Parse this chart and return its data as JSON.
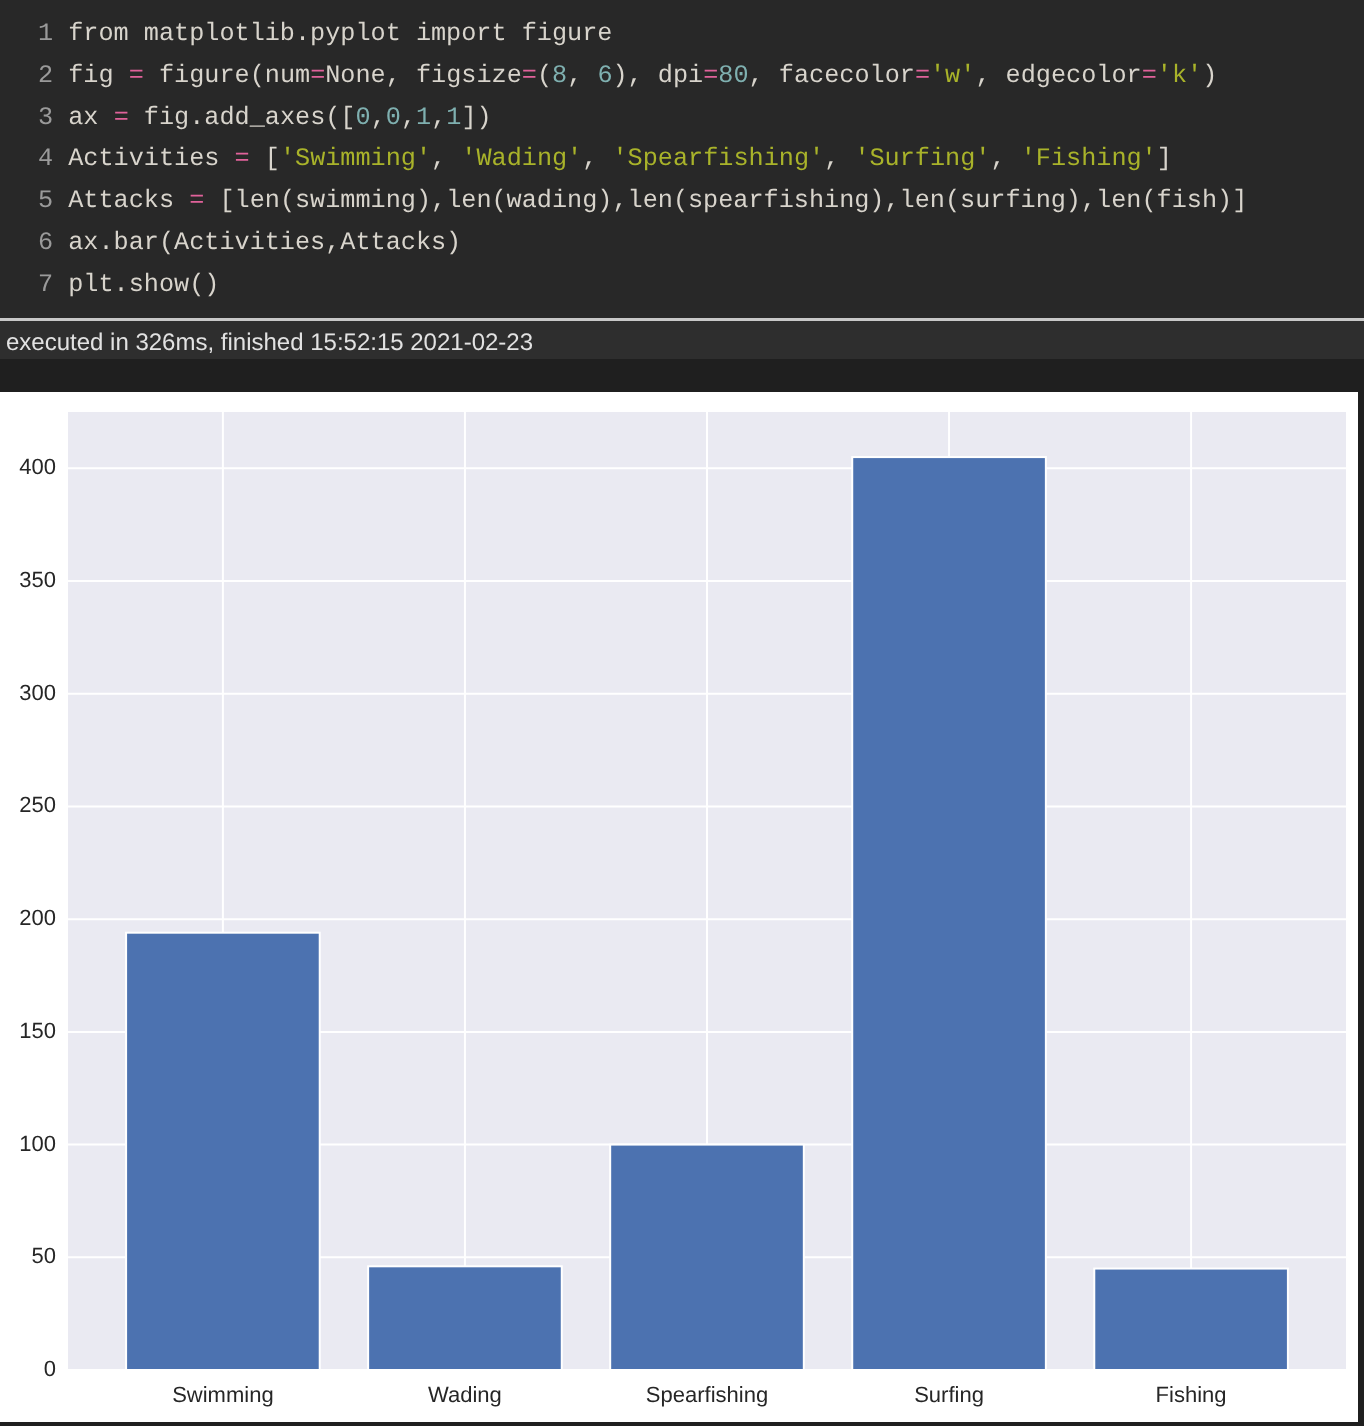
{
  "chart_data": {
    "type": "bar",
    "categories": [
      "Swimming",
      "Wading",
      "Spearfishing",
      "Surfing",
      "Fishing"
    ],
    "values": [
      194,
      46,
      100,
      405,
      45
    ],
    "color": "#4c72b0",
    "ylim": [
      0,
      425
    ],
    "yticks": [
      0,
      50,
      100,
      150,
      200,
      250,
      300,
      350,
      400
    ],
    "grid": true,
    "annotations": [
      "1 from matplotlib.pyplot import figure",
      "2 fig = figure(num=None, figsize=(8, 6), dpi=80, facecolor='w', edgecolor='k')",
      "3 ax = fig.add_axes([0,0,1,1])",
      "4 Activities = ['Swimming', 'Wading', 'Spearfishing', 'Surfing', 'Fishing']",
      "5 Attacks = [len(swimming),len(wading),len(spearfishing),len(surfing),len(fish)]",
      "6 ax.bar(Activities,Attacks)",
      "7 plt.show()",
      "executed in 326ms, finished 15:52:15 2021-02-23"
    ]
  }
}
